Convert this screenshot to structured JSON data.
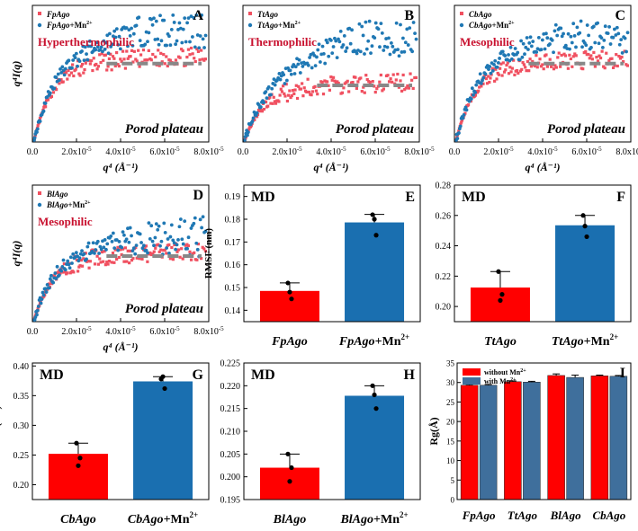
{
  "figure": {
    "red": "#ff2b2b",
    "blue": "#1f78b4",
    "bar_red": "#ff0000",
    "bar_blue": "#1a6fb0",
    "plateau_color": "#888888",
    "pointRed": "#f05060"
  },
  "chart_data": [
    {
      "panel": "A",
      "type": "scatter",
      "series": [
        {
          "name": "FpAgo"
        },
        {
          "name": "FpAgo+Mn2+"
        }
      ],
      "legend_main": [
        "FpAgo",
        "FpAgo"
      ],
      "legend_sup": "2+",
      "legend_mn": "+Mn",
      "category": "Hyperthermophilic",
      "plateau_label": "Porod plateau",
      "ylabel": "q⁴I(q)",
      "xlabel": "q⁴ (Å⁻¹)",
      "xlim": [
        0,
        8e-05
      ],
      "xticks": [
        "0.0",
        "2.0x10",
        "4.0x10",
        "6.0x10",
        "8.0x10"
      ],
      "xtick_exp": "-5",
      "red_plateau": 0.62,
      "blue_plateau": 0.84,
      "plateau_level": 0.6
    },
    {
      "panel": "B",
      "type": "scatter",
      "series": [
        {
          "name": "TtAgo"
        },
        {
          "name": "TtAgo+Mn2+"
        }
      ],
      "legend_main": [
        "TtAgo",
        "TtAgo"
      ],
      "legend_sup": "2+",
      "legend_mn": "+Mn",
      "category": "Thermophilic",
      "plateau_label": "Porod plateau",
      "xlabel": "q⁴ (Å⁻¹)",
      "xlim": [
        0,
        8e-05
      ],
      "xticks": [
        "0.0",
        "2.0x10",
        "4.0x10",
        "6.0x10",
        "8.0x10"
      ],
      "xtick_exp": "-5",
      "red_plateau": 0.42,
      "blue_plateau": 0.78,
      "plateau_level": 0.43
    },
    {
      "panel": "C",
      "type": "scatter",
      "series": [
        {
          "name": "CbAgo"
        },
        {
          "name": "CbAgo+Mn2+"
        }
      ],
      "legend_main": [
        "CbAgo",
        "CbAgo"
      ],
      "legend_sup": "2+",
      "legend_mn": "+Mn",
      "category": "Mesophilic",
      "plateau_label": "Porod plateau",
      "xlabel": "q⁴ (Å⁻¹)",
      "xlim": [
        0,
        8e-05
      ],
      "xticks": [
        "0.0",
        "2.0x10",
        "4.0x10",
        "6.0x10",
        "8.0x10"
      ],
      "xtick_exp": "-5",
      "red_plateau": 0.6,
      "blue_plateau": 0.8,
      "plateau_level": 0.6
    },
    {
      "panel": "D",
      "type": "scatter",
      "series": [
        {
          "name": "BlAgo"
        },
        {
          "name": "BlAgo+Mn2+"
        }
      ],
      "legend_main": [
        "BlAgo",
        "BlAgo"
      ],
      "legend_sup": "2+",
      "legend_mn": "+Mn",
      "category": "Mesophilic",
      "plateau_label": "Porod plateau",
      "ylabel": "q⁴I(q)",
      "xlabel": "q⁴ (Å⁻¹)",
      "xlim": [
        0,
        8e-05
      ],
      "xticks": [
        "0.0",
        "2.0x10",
        "4.0x10",
        "6.0x10",
        "8.0x10"
      ],
      "xtick_exp": "-5",
      "red_plateau": 0.5,
      "blue_plateau": 0.62,
      "plateau_level": 0.5
    },
    {
      "panel": "E",
      "type": "bar",
      "tag": "MD",
      "ylabel": "RMSF (nm)",
      "categories": [
        "FpAgo",
        "FpAgo"
      ],
      "cat_suffix": [
        "",
        "+Mn"
      ],
      "cat_sup": [
        "",
        "2+"
      ],
      "values": [
        0.1485,
        0.1786
      ],
      "errors": [
        0.0035,
        0.0035
      ],
      "points": [
        [
          0.152,
          0.145,
          0.148
        ],
        [
          0.182,
          0.173,
          0.18
        ]
      ],
      "ylim": [
        0.135,
        0.195
      ],
      "yticks": [
        0.14,
        0.15,
        0.16,
        0.17,
        0.18,
        0.19
      ],
      "ytick_labels": [
        "0.14",
        "0.15",
        "0.16",
        "0.17",
        "0.18",
        "0.19"
      ]
    },
    {
      "panel": "F",
      "type": "bar",
      "tag": "MD",
      "categories": [
        "TtAgo",
        "TtAgo"
      ],
      "cat_suffix": [
        "",
        "+Mn"
      ],
      "cat_sup": [
        "",
        "2+"
      ],
      "values": [
        0.2125,
        0.2535
      ],
      "errors": [
        0.0105,
        0.0065
      ],
      "points": [
        [
          0.223,
          0.208,
          0.204
        ],
        [
          0.26,
          0.246,
          0.253
        ]
      ],
      "ylim": [
        0.19,
        0.28
      ],
      "yticks": [
        0.2,
        0.22,
        0.24,
        0.26,
        0.28
      ],
      "ytick_labels": [
        "0.20",
        "0.22",
        "0.24",
        "0.26",
        "0.28"
      ]
    },
    {
      "panel": "G",
      "type": "bar",
      "tag": "MD",
      "ylabel": "RMSF (nm)",
      "categories": [
        "CbAgo",
        "CbAgo"
      ],
      "cat_suffix": [
        "",
        "+Mn"
      ],
      "cat_sup": [
        "",
        "2+"
      ],
      "values": [
        0.252,
        0.374
      ],
      "errors": [
        0.018,
        0.008
      ],
      "points": [
        [
          0.27,
          0.245,
          0.232
        ],
        [
          0.378,
          0.362,
          0.382
        ]
      ],
      "ylim": [
        0.175,
        0.405
      ],
      "yticks": [
        0.2,
        0.25,
        0.3,
        0.35,
        0.4
      ],
      "ytick_labels": [
        "0.20",
        "0.25",
        "0.30",
        "0.35",
        "0.40"
      ]
    },
    {
      "panel": "H",
      "type": "bar",
      "tag": "MD",
      "categories": [
        "BlAgo",
        "BlAgo"
      ],
      "cat_suffix": [
        "",
        "+Mn"
      ],
      "cat_sup": [
        "",
        "2+"
      ],
      "values": [
        0.202,
        0.2178
      ],
      "errors": [
        0.003,
        0.0022
      ],
      "points": [
        [
          0.205,
          0.202,
          0.199
        ],
        [
          0.22,
          0.215,
          0.218
        ]
      ],
      "ylim": [
        0.195,
        0.225
      ],
      "yticks": [
        0.195,
        0.2,
        0.205,
        0.21,
        0.215,
        0.22,
        0.225
      ],
      "ytick_labels": [
        "0.195",
        "0.200",
        "0.205",
        "0.210",
        "0.215",
        "0.220",
        "0.225"
      ]
    },
    {
      "panel": "I",
      "type": "bar",
      "ylabel": "Rg(Å)",
      "categories": [
        "FpAgo",
        "TtAgo",
        "BlAgo",
        "CbAgo"
      ],
      "series": [
        {
          "name": "without Mn2+",
          "label": "without Mn",
          "values": [
            29.3,
            30.2,
            31.8,
            31.7
          ],
          "errors": [
            0.2,
            0.2,
            0.4,
            0.2
          ]
        },
        {
          "name": "with Mn2+",
          "label": "with Mn",
          "values": [
            29.3,
            30.1,
            31.3,
            31.6
          ],
          "errors": [
            0.2,
            0.2,
            0.6,
            0.2
          ]
        }
      ],
      "sup": "2+",
      "ylim": [
        0,
        35
      ],
      "yticks": [
        0,
        5,
        10,
        15,
        20,
        25,
        30,
        35
      ],
      "ytick_labels": [
        "0",
        "5",
        "10",
        "15",
        "20",
        "25",
        "30",
        "35"
      ]
    }
  ]
}
